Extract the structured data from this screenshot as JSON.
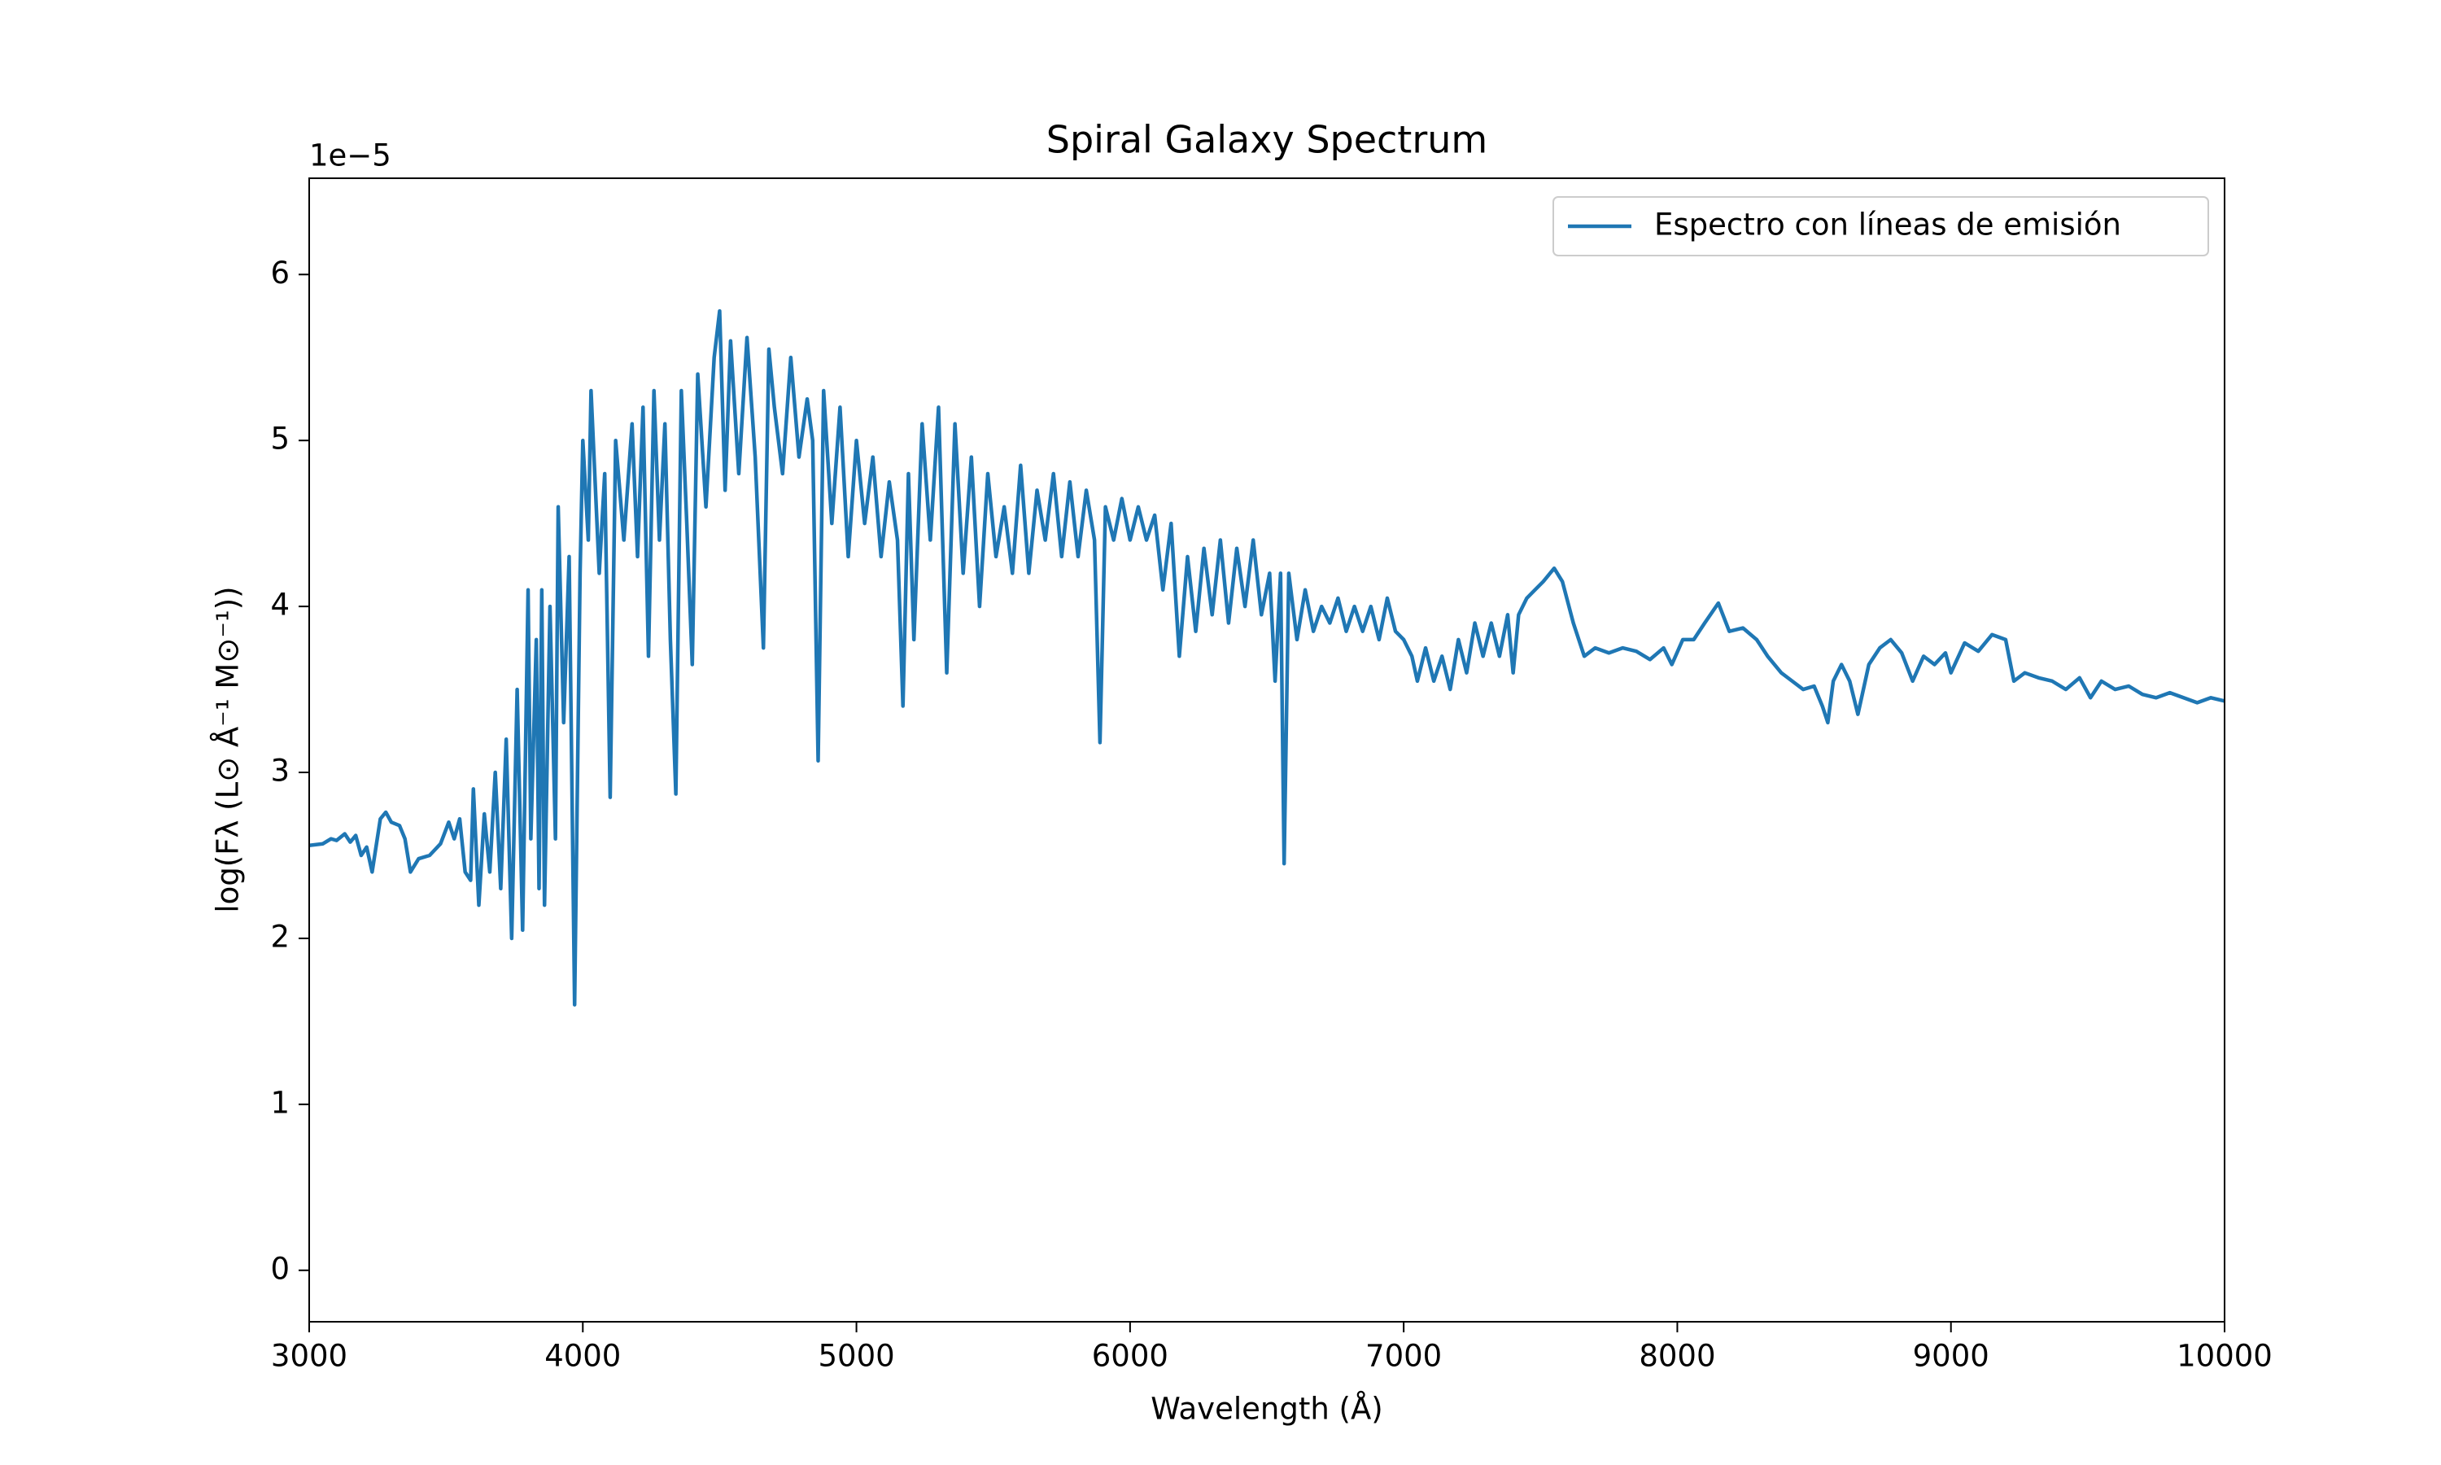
{
  "chart_data": {
    "type": "line",
    "title": "Spiral Galaxy Spectrum",
    "xlabel": "Wavelength (Å)",
    "ylabel": "log(Fλ (L⊙ Å⁻¹ M⊙⁻¹))",
    "y_offset_text": "1e−5",
    "xlim": [
      3000,
      10000
    ],
    "xticks": [
      3000,
      4000,
      5000,
      6000,
      7000,
      8000,
      9000,
      10000
    ],
    "ylim": [
      -0.31,
      6.58
    ],
    "yticks": [
      0,
      1,
      2,
      3,
      4,
      5,
      6
    ],
    "legend": "upper right",
    "grid": false,
    "x": [
      3000,
      3050,
      3080,
      3100,
      3130,
      3150,
      3170,
      3190,
      3210,
      3230,
      3260,
      3280,
      3300,
      3330,
      3350,
      3370,
      3400,
      3440,
      3480,
      3510,
      3530,
      3550,
      3570,
      3590,
      3600,
      3620,
      3640,
      3660,
      3680,
      3700,
      3720,
      3740,
      3760,
      3780,
      3800,
      3810,
      3830,
      3840,
      3850,
      3860,
      3880,
      3900,
      3910,
      3930,
      3950,
      3970,
      3990,
      4000,
      4020,
      4030,
      4060,
      4080,
      4100,
      4120,
      4150,
      4180,
      4200,
      4220,
      4240,
      4260,
      4280,
      4300,
      4320,
      4340,
      4360,
      4380,
      4400,
      4420,
      4450,
      4480,
      4500,
      4520,
      4540,
      4570,
      4600,
      4630,
      4660,
      4680,
      4700,
      4730,
      4760,
      4790,
      4820,
      4840,
      4860,
      4880,
      4910,
      4940,
      4970,
      5000,
      5030,
      5060,
      5090,
      5120,
      5150,
      5170,
      5190,
      5210,
      5240,
      5270,
      5300,
      5330,
      5360,
      5390,
      5420,
      5450,
      5480,
      5510,
      5540,
      5570,
      5600,
      5630,
      5660,
      5690,
      5720,
      5750,
      5780,
      5810,
      5840,
      5870,
      5890,
      5910,
      5940,
      5970,
      6000,
      6030,
      6060,
      6090,
      6120,
      6150,
      6180,
      6210,
      6240,
      6270,
      6300,
      6330,
      6360,
      6390,
      6420,
      6450,
      6480,
      6510,
      6530,
      6550,
      6563,
      6580,
      6610,
      6640,
      6670,
      6700,
      6730,
      6760,
      6790,
      6820,
      6850,
      6880,
      6910,
      6940,
      6970,
      7000,
      7030,
      7050,
      7080,
      7110,
      7140,
      7170,
      7200,
      7230,
      7260,
      7290,
      7320,
      7350,
      7380,
      7400,
      7420,
      7450,
      7480,
      7510,
      7550,
      7580,
      7620,
      7660,
      7700,
      7750,
      7800,
      7850,
      7900,
      7950,
      7980,
      8020,
      8060,
      8100,
      8150,
      8190,
      8240,
      8290,
      8330,
      8380,
      8420,
      8460,
      8500,
      8530,
      8550,
      8570,
      8600,
      8630,
      8660,
      8700,
      8740,
      8780,
      8820,
      8860,
      8900,
      8940,
      8980,
      9000,
      9050,
      9100,
      9150,
      9200,
      9230,
      9270,
      9320,
      9370,
      9420,
      9470,
      9510,
      9550,
      9600,
      9650,
      9700,
      9750,
      9800,
      9850,
      9900,
      9950,
      10000
    ],
    "series": [
      {
        "name": "Espectro con líneas de emisión",
        "color": "#1f77b4",
        "values": [
          2.56,
          2.57,
          2.6,
          2.59,
          2.63,
          2.58,
          2.62,
          2.5,
          2.55,
          2.4,
          2.72,
          2.76,
          2.7,
          2.68,
          2.6,
          2.4,
          2.48,
          2.5,
          2.57,
          2.7,
          2.6,
          2.72,
          2.4,
          2.35,
          2.9,
          2.2,
          2.75,
          2.4,
          3.0,
          2.3,
          3.2,
          2.0,
          3.5,
          2.05,
          4.1,
          2.6,
          3.8,
          2.3,
          4.1,
          2.2,
          4.0,
          2.6,
          4.6,
          3.3,
          4.3,
          1.6,
          4.2,
          5.0,
          4.4,
          5.3,
          4.2,
          4.8,
          2.85,
          5.0,
          4.4,
          5.1,
          4.3,
          5.2,
          3.7,
          5.3,
          4.4,
          5.1,
          3.8,
          2.87,
          5.3,
          4.5,
          3.65,
          5.4,
          4.6,
          5.5,
          5.78,
          4.7,
          5.6,
          4.8,
          5.62,
          4.9,
          3.75,
          5.55,
          5.2,
          4.8,
          5.5,
          4.9,
          5.25,
          5.0,
          3.07,
          5.3,
          4.5,
          5.2,
          4.3,
          5.0,
          4.5,
          4.9,
          4.3,
          4.75,
          4.4,
          3.4,
          4.8,
          3.8,
          5.1,
          4.4,
          5.2,
          3.6,
          5.1,
          4.2,
          4.9,
          4.0,
          4.8,
          4.3,
          4.6,
          4.2,
          4.85,
          4.2,
          4.7,
          4.4,
          4.8,
          4.3,
          4.75,
          4.3,
          4.7,
          4.4,
          3.18,
          4.6,
          4.4,
          4.65,
          4.4,
          4.6,
          4.4,
          4.55,
          4.1,
          4.5,
          3.7,
          4.3,
          3.85,
          4.35,
          3.95,
          4.4,
          3.9,
          4.35,
          4.0,
          4.4,
          3.95,
          4.2,
          3.55,
          4.2,
          2.45,
          4.2,
          3.8,
          4.1,
          3.85,
          4.0,
          3.9,
          4.05,
          3.85,
          4.0,
          3.85,
          4.0,
          3.8,
          4.05,
          3.85,
          3.8,
          3.7,
          3.55,
          3.75,
          3.55,
          3.7,
          3.5,
          3.8,
          3.6,
          3.9,
          3.7,
          3.9,
          3.7,
          3.95,
          3.6,
          3.95,
          4.05,
          4.1,
          4.15,
          4.23,
          4.15,
          3.9,
          3.7,
          3.75,
          3.72,
          3.75,
          3.73,
          3.68,
          3.75,
          3.65,
          3.8,
          3.8,
          3.9,
          4.02,
          3.85,
          3.87,
          3.8,
          3.7,
          3.6,
          3.55,
          3.5,
          3.52,
          3.4,
          3.3,
          3.55,
          3.65,
          3.55,
          3.35,
          3.65,
          3.75,
          3.8,
          3.72,
          3.55,
          3.7,
          3.65,
          3.72,
          3.6,
          3.78,
          3.73,
          3.83,
          3.8,
          3.55,
          3.6,
          3.57,
          3.55,
          3.5,
          3.57,
          3.45,
          3.55,
          3.5,
          3.52,
          3.47,
          3.45,
          3.48,
          3.45,
          3.42,
          3.45,
          3.43
        ]
      }
    ]
  }
}
